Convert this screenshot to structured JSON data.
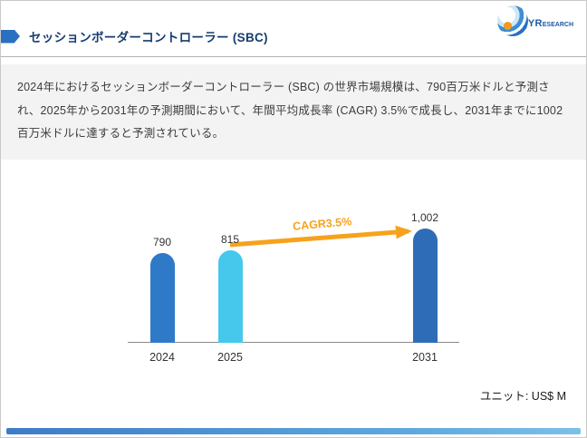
{
  "header": {
    "title": "セッションボーダーコントローラー (SBC)"
  },
  "logo": {
    "primary": "QYR",
    "secondary": "ESEARCH"
  },
  "summary": {
    "text": "2024年におけるセッションボーダーコントローラー (SBC) の世界市場規模は、790百万米ドルと予測され、2025年から2031年の予測期間において、年間平均成長率 (CAGR) 3.5%で成長し、2031年までに1002百万米ドルに達すると予測されている。"
  },
  "chart_data": {
    "type": "bar",
    "title": "",
    "categories": [
      "2024",
      "2025",
      "2031"
    ],
    "values": [
      790,
      815,
      1002
    ],
    "value_labels": [
      "790",
      "815",
      "1,002"
    ],
    "bar_colors": [
      "#2e7ac8",
      "#45c8ec",
      "#2f6cb7"
    ],
    "annotation": "CAGR3.5%",
    "annotation_color": "#f7a21c",
    "unit_label": "ユニット: US$ M",
    "xlabel": "",
    "ylabel": "",
    "ylim": [
      0,
      1002
    ],
    "grid": false,
    "legend": false
  },
  "colors": {
    "accent_blue": "#2a70c2",
    "title_blue": "#153c6e",
    "paragraph_bg": "#f3f3f3",
    "footer_blue": "#4a90d6"
  }
}
